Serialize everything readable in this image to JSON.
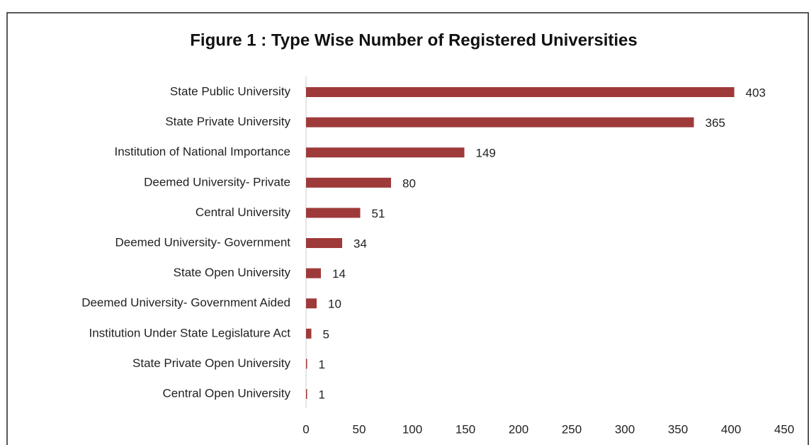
{
  "chart_data": {
    "type": "bar",
    "orientation": "horizontal",
    "title": "Figure 1 : Type Wise Number of Registered Universities",
    "categories": [
      "State Public University",
      "State Private University",
      "Institution of National Importance",
      "Deemed University- Private",
      "Central University",
      "Deemed University- Government",
      "State Open University",
      "Deemed University- Government Aided",
      "Institution Under State Legislature Act",
      "State Private Open University",
      "Central Open University"
    ],
    "values": [
      403,
      365,
      149,
      80,
      51,
      34,
      14,
      10,
      5,
      1,
      1
    ],
    "color": "#9e3a3a",
    "xlim": [
      0,
      450
    ],
    "xticks": [
      0,
      50,
      100,
      150,
      200,
      250,
      300,
      350,
      400,
      450
    ],
    "grid": false
  }
}
